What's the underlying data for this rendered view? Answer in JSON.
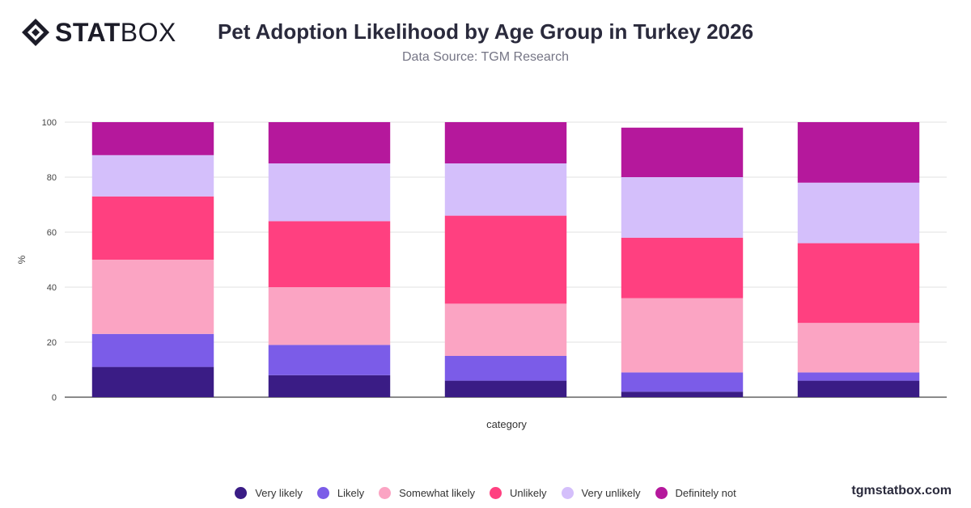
{
  "brand": {
    "logo_bold": "STAT",
    "logo_light": "BOX",
    "watermark": "tgmstatbox.com"
  },
  "chart_data": {
    "type": "bar",
    "stacked": true,
    "title": "Pet Adoption Likelihood by Age Group in Turkey 2026",
    "subtitle": "Data Source: TGM Research",
    "xlabel": "category",
    "ylabel": "%",
    "ylim": [
      0,
      100
    ],
    "yticks": [
      0,
      20,
      40,
      60,
      80,
      100
    ],
    "grid": true,
    "legend_position": "bottom",
    "categories": [
      "",
      "",
      "",
      "",
      ""
    ],
    "series": [
      {
        "name": "Very likely",
        "color": "#3a1c85",
        "values": [
          11,
          8,
          6,
          2,
          6
        ]
      },
      {
        "name": "Likely",
        "color": "#7b5ce8",
        "values": [
          12,
          11,
          9,
          7,
          3
        ]
      },
      {
        "name": "Somewhat likely",
        "color": "#fba4c3",
        "values": [
          27,
          21,
          19,
          27,
          18
        ]
      },
      {
        "name": "Unlikely",
        "color": "#ff4080",
        "values": [
          23,
          24,
          32,
          22,
          29
        ]
      },
      {
        "name": "Very unlikely",
        "color": "#d4bffb",
        "values": [
          15,
          21,
          19,
          22,
          22
        ]
      },
      {
        "name": "Definitely not",
        "color": "#b5189c",
        "values": [
          12,
          15,
          15,
          18,
          22
        ]
      }
    ]
  }
}
